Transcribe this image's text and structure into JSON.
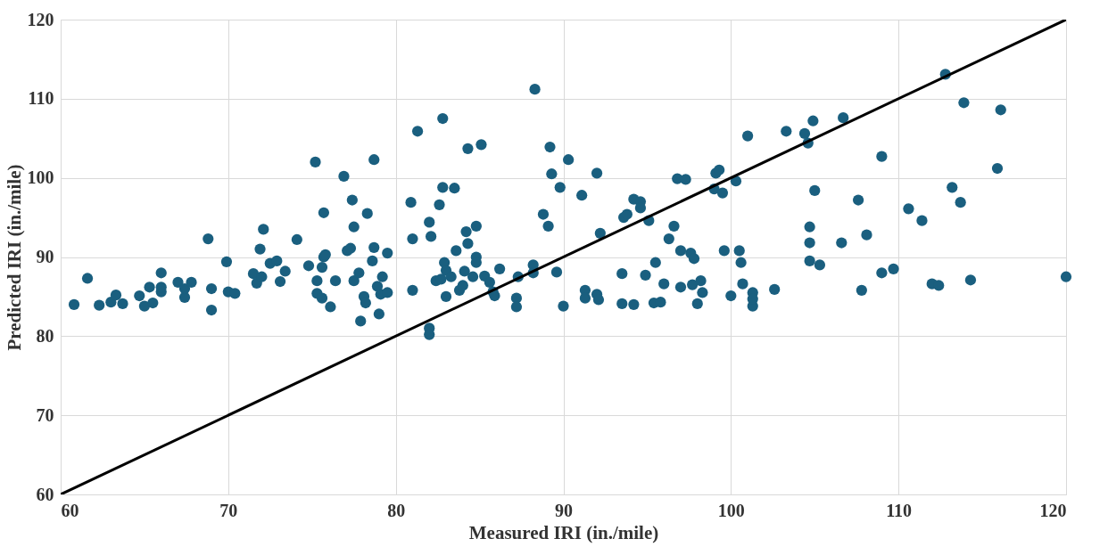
{
  "chart_data": {
    "type": "scatter",
    "xlabel": "Measured IRI (in./mile)",
    "ylabel": "Predicted IRI (in./mile)",
    "xlim": [
      60,
      120
    ],
    "ylim": [
      60,
      120
    ],
    "xticks": [
      60,
      70,
      80,
      90,
      100,
      110,
      120
    ],
    "yticks": [
      60,
      70,
      80,
      90,
      100,
      110,
      120
    ],
    "grid": true,
    "series": [
      {
        "color": "#1a5f7f",
        "marker": "circle",
        "x": [
          60.8,
          61.6,
          62.3,
          63,
          63.3,
          63.7,
          64.7,
          65,
          65.3,
          65.5,
          66,
          66,
          66,
          67,
          67.4,
          67.4,
          67.8,
          68.8,
          69,
          69,
          69.9,
          70,
          70.4,
          71.5,
          71.7,
          71.9,
          72,
          72.1,
          72.5,
          72.9,
          73.1,
          73.4,
          74.1,
          74.8,
          75.2,
          75.3,
          75.3,
          75.6,
          75.6,
          75.7,
          75.7,
          75.8,
          76.1,
          76.4,
          76.9,
          77.1,
          77.3,
          77.4,
          77.5,
          77.5,
          77.8,
          77.9,
          78.1,
          78.2,
          78.3,
          78.7,
          78.7,
          78.6,
          78.9,
          79,
          79.1,
          79.2,
          79.5,
          79.5,
          80.9,
          81,
          81,
          81.3,
          82,
          82,
          82,
          82.1,
          82.4,
          82.6,
          82.7,
          82.8,
          82.8,
          82.9,
          83,
          83,
          83.3,
          83.5,
          83.6,
          83.8,
          84,
          84.1,
          84.2,
          84.3,
          84.3,
          84.6,
          84.8,
          84.8,
          84.8,
          85.1,
          85.3,
          85.6,
          85.8,
          85.9,
          86.2,
          87.2,
          87.2,
          87.3,
          88.2,
          88.2,
          88.3,
          88.8,
          89.1,
          89.2,
          89.3,
          89.6,
          89.8,
          90,
          90.3,
          91.1,
          91.3,
          91.3,
          92,
          92,
          92.1,
          92.2,
          93.5,
          93.5,
          93.6,
          93.8,
          94.2,
          94.2,
          94.6,
          94.6,
          94.9,
          95.1,
          95.4,
          95.5,
          95.8,
          96,
          96.3,
          96.6,
          96.8,
          97,
          97,
          97.3,
          97.6,
          97.7,
          97.8,
          98,
          98.2,
          98.3,
          99,
          99.1,
          99.3,
          99.5,
          99.6,
          100,
          100.3,
          100.5,
          100.6,
          100.7,
          101,
          101.3,
          101.3,
          101.3,
          102.6,
          103.3,
          104.4,
          104.6,
          104.7,
          104.7,
          104.7,
          104.9,
          105,
          105.3,
          106.6,
          106.7,
          107.6,
          107.8,
          108.1,
          109,
          109,
          109.7,
          110.6,
          111.4,
          112,
          112.4,
          112.8,
          113.2,
          113.7,
          113.9,
          114.3,
          115.9,
          116.1,
          120
        ],
        "values": [
          84,
          87.3,
          83.9,
          84.3,
          85.2,
          84.1,
          85.1,
          83.8,
          86.2,
          84.2,
          88,
          85.6,
          86.2,
          86.8,
          84.9,
          86,
          86.8,
          92.3,
          83.3,
          86,
          89.4,
          85.6,
          85.4,
          87.9,
          86.7,
          91,
          87.5,
          93.5,
          89.2,
          89.5,
          86.9,
          88.2,
          92.2,
          88.9,
          102,
          85.4,
          87,
          84.8,
          88.7,
          95.6,
          90,
          90.3,
          83.7,
          87,
          100.2,
          90.8,
          91.1,
          97.2,
          93.8,
          87,
          88,
          81.9,
          85,
          84.2,
          95.5,
          102.3,
          91.2,
          89.5,
          86.3,
          82.8,
          85.3,
          87.5,
          90.5,
          85.5,
          96.9,
          92.3,
          85.8,
          105.9,
          94.4,
          81,
          80.2,
          92.6,
          87,
          96.6,
          87.2,
          98.8,
          107.5,
          89.3,
          85,
          88.3,
          87.5,
          98.7,
          90.8,
          85.8,
          86.4,
          88.2,
          93.2,
          103.7,
          91.7,
          87.5,
          90,
          93.9,
          89.3,
          104.2,
          87.6,
          86.8,
          85.6,
          85.1,
          88.5,
          84.8,
          83.7,
          87.5,
          89,
          88,
          111.2,
          95.4,
          93.9,
          103.9,
          100.5,
          88.1,
          98.8,
          83.8,
          102.3,
          97.8,
          85.8,
          84.8,
          100.6,
          85.3,
          84.6,
          93,
          87.9,
          84.1,
          95,
          95.4,
          97.3,
          84,
          97,
          96.2,
          87.7,
          94.6,
          84.2,
          89.3,
          84.3,
          86.6,
          92.3,
          93.9,
          99.9,
          86.2,
          90.8,
          99.8,
          90.5,
          86.5,
          89.8,
          84.1,
          87,
          85.5,
          98.6,
          100.6,
          101,
          98.1,
          90.8,
          85.1,
          99.6,
          90.8,
          89.3,
          86.6,
          105.3,
          85.5,
          83.8,
          84.7,
          85.9,
          105.9,
          105.6,
          104.4,
          89.5,
          91.8,
          93.8,
          107.2,
          98.4,
          89,
          91.8,
          107.6,
          97.2,
          85.8,
          92.8,
          102.7,
          88,
          88.5,
          96.1,
          94.6,
          86.6,
          86.4,
          113.1,
          98.8,
          96.9,
          109.5,
          87.1,
          101.2,
          108.6,
          87.5
        ]
      },
      {
        "type": "line",
        "color": "#000000",
        "x": [
          60,
          120
        ],
        "values": [
          60,
          120
        ]
      }
    ]
  }
}
